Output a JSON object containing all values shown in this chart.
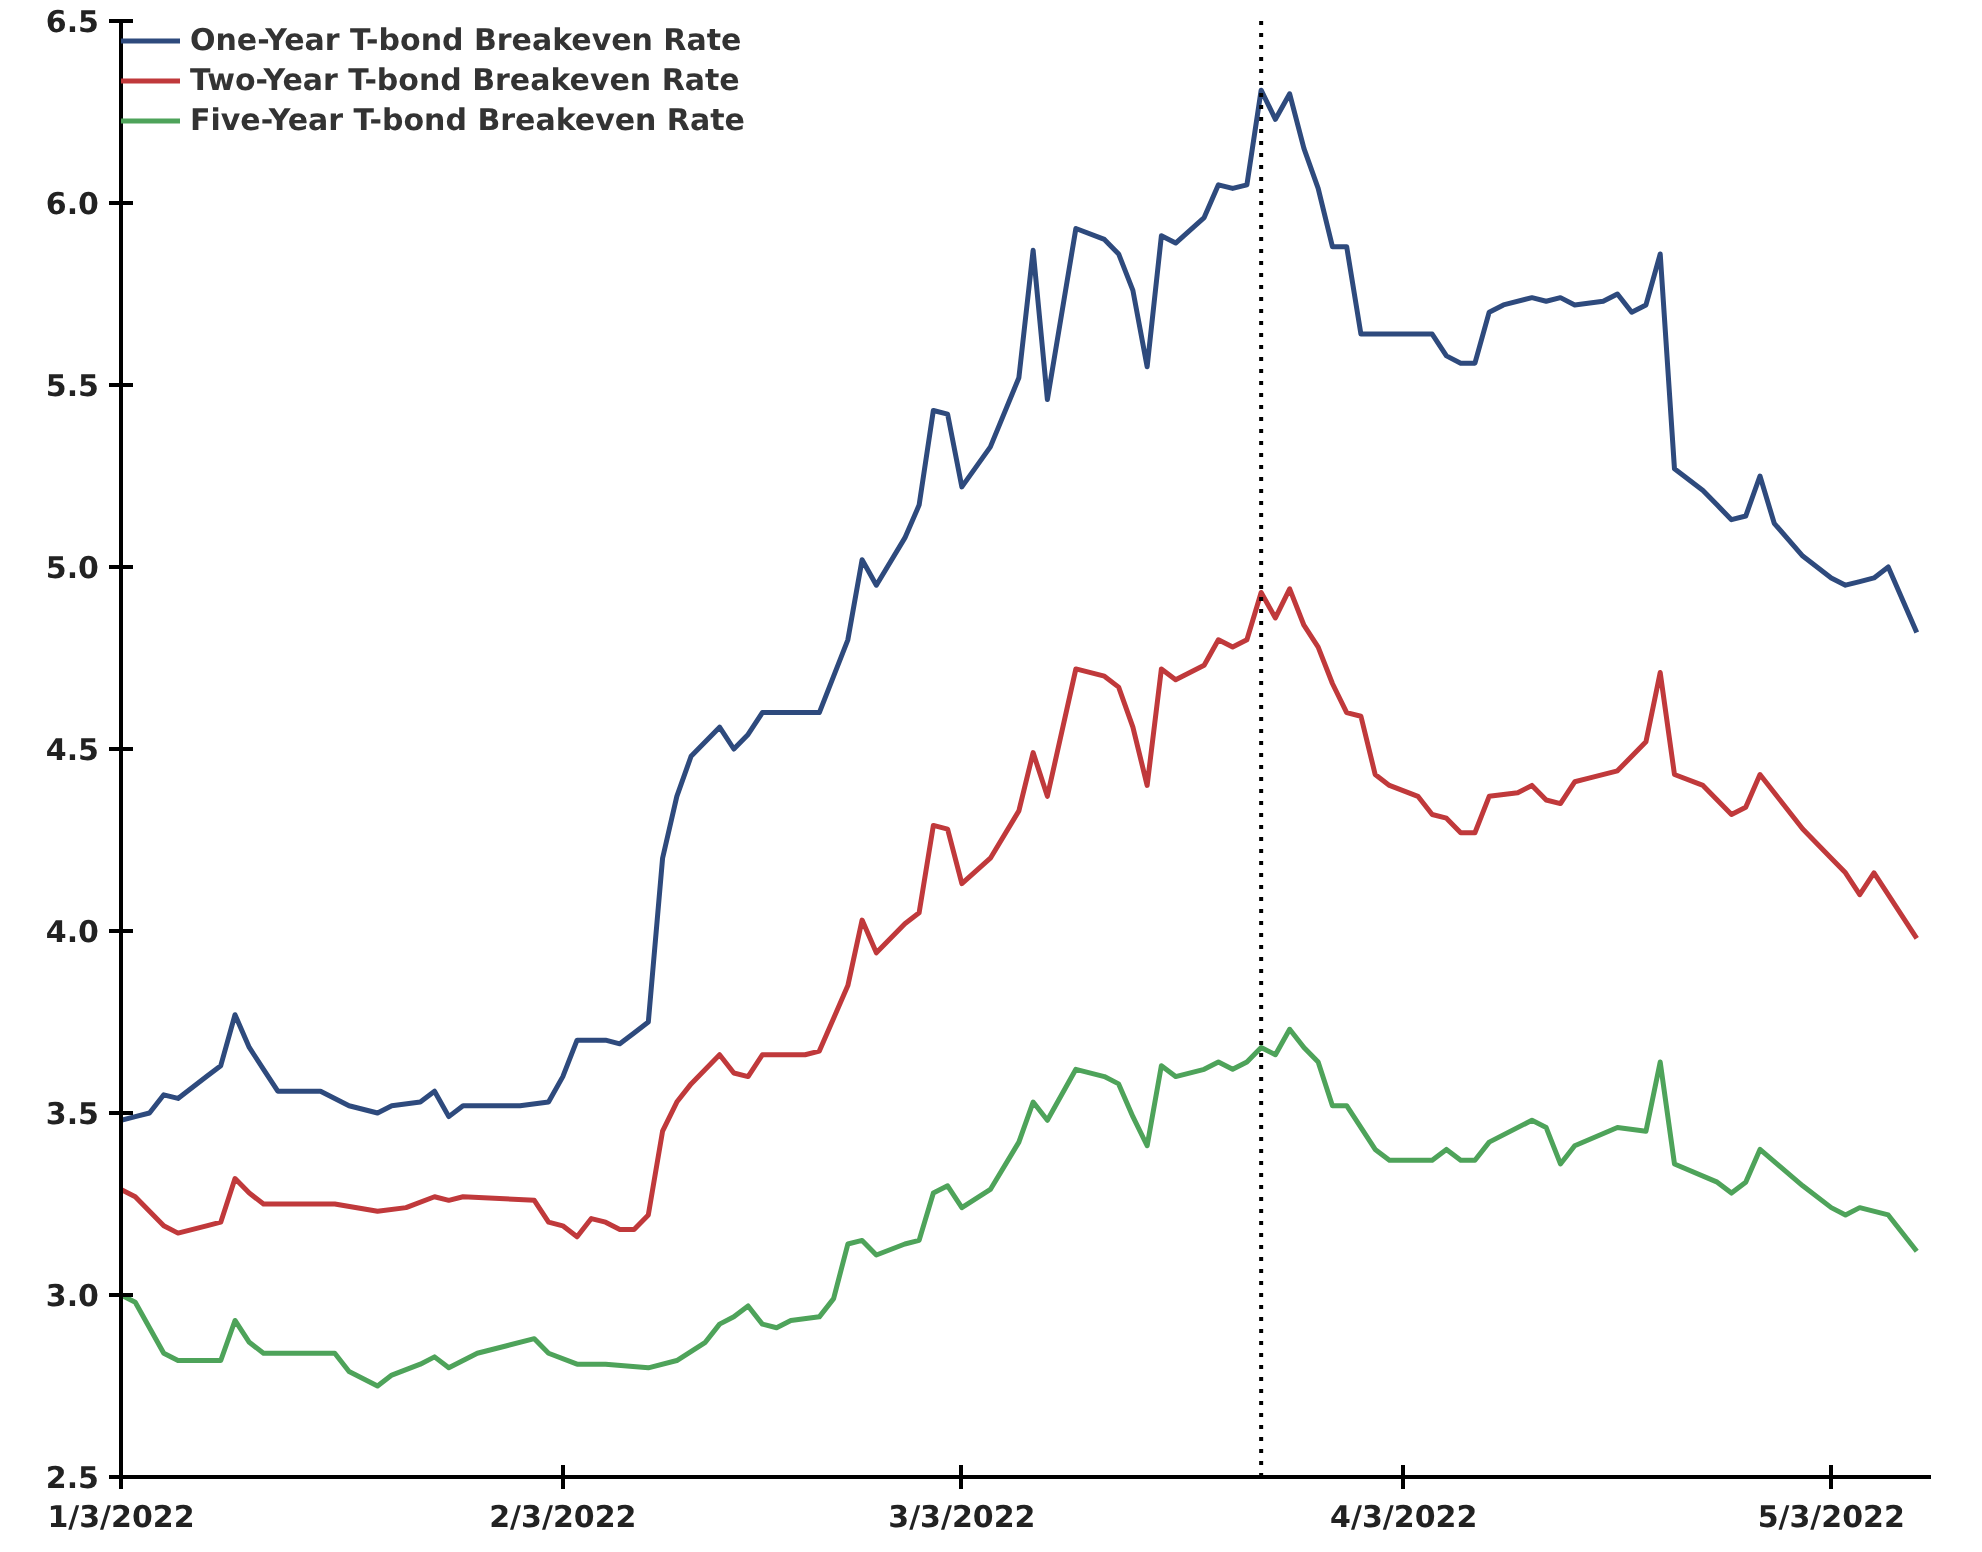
{
  "chart_data": {
    "type": "line",
    "xlim": [
      "2022-01-03",
      "2022-05-10"
    ],
    "xticks": [
      {
        "value": "2022-01-03",
        "label": "1/3/2022"
      },
      {
        "value": "2022-02-03",
        "label": "2/3/2022"
      },
      {
        "value": "2022-03-03",
        "label": "3/3/2022"
      },
      {
        "value": "2022-04-03",
        "label": "4/3/2022"
      },
      {
        "value": "2022-05-03",
        "label": "5/3/2022"
      }
    ],
    "ylim": [
      2.5,
      6.5
    ],
    "yticks": [
      2.5,
      {
        "value": 3,
        "label": "3.0"
      },
      3.5,
      {
        "value": 4,
        "label": "4.0"
      },
      4.5,
      {
        "value": 5,
        "label": "5.0"
      },
      5.5,
      {
        "value": 6,
        "label": "6.0"
      },
      6.5
    ],
    "grid": false,
    "legend": "top left",
    "line_style": "solid",
    "marker": "none",
    "ref_lines": [
      {
        "axis": "x",
        "value": "2022-03-24",
        "color": "#000000",
        "line_style": "dotted"
      }
    ],
    "series": [
      {
        "name": "One-Year T-bond Breakeven Rate",
        "color": "#2e4a7d",
        "x": [
          "2022-01-03",
          "2022-01-04",
          "2022-01-05",
          "2022-01-06",
          "2022-01-07",
          "2022-01-09",
          "2022-01-10",
          "2022-01-11",
          "2022-01-12",
          "2022-01-13",
          "2022-01-14",
          "2022-01-17",
          "2022-01-19",
          "2022-01-21",
          "2022-01-22",
          "2022-01-24",
          "2022-01-25",
          "2022-01-26",
          "2022-01-27",
          "2022-01-31",
          "2022-02-02",
          "2022-02-03",
          "2022-02-04",
          "2022-02-06",
          "2022-02-07",
          "2022-02-08",
          "2022-02-09",
          "2022-02-10",
          "2022-02-11",
          "2022-02-12",
          "2022-02-14",
          "2022-02-15",
          "2022-02-16",
          "2022-02-17",
          "2022-02-21",
          "2022-02-23",
          "2022-02-24",
          "2022-02-25",
          "2022-02-27",
          "2022-02-28",
          "2022-03-01",
          "2022-03-02",
          "2022-03-03",
          "2022-03-05",
          "2022-03-07",
          "2022-03-08",
          "2022-03-09",
          "2022-03-11",
          "2022-03-13",
          "2022-03-14",
          "2022-03-15",
          "2022-03-16",
          "2022-03-17",
          "2022-03-18",
          "2022-03-20",
          "2022-03-21",
          "2022-03-22",
          "2022-03-23",
          "2022-03-24",
          "2022-03-25",
          "2022-03-26",
          "2022-03-27",
          "2022-03-28",
          "2022-03-29",
          "2022-03-30",
          "2022-03-31",
          "2022-04-02",
          "2022-04-05",
          "2022-04-06",
          "2022-04-07",
          "2022-04-08",
          "2022-04-09",
          "2022-04-10",
          "2022-04-12",
          "2022-04-13",
          "2022-04-14",
          "2022-04-15",
          "2022-04-17",
          "2022-04-18",
          "2022-04-19",
          "2022-04-20",
          "2022-04-21",
          "2022-04-22",
          "2022-04-24",
          "2022-04-25",
          "2022-04-26",
          "2022-04-27",
          "2022-04-28",
          "2022-04-29",
          "2022-05-01",
          "2022-05-03",
          "2022-05-04",
          "2022-05-05",
          "2022-05-06",
          "2022-05-07",
          "2022-05-09"
        ],
        "values": [
          3.48,
          3.49,
          3.5,
          3.55,
          3.54,
          3.6,
          3.63,
          3.77,
          3.68,
          3.62,
          3.56,
          3.56,
          3.52,
          3.5,
          3.52,
          3.53,
          3.56,
          3.49,
          3.52,
          3.52,
          3.53,
          3.6,
          3.7,
          3.7,
          3.69,
          3.72,
          3.75,
          4.2,
          4.37,
          4.48,
          4.56,
          4.5,
          4.54,
          4.6,
          4.6,
          4.8,
          5.02,
          4.95,
          5.08,
          5.17,
          5.43,
          5.42,
          5.22,
          5.33,
          5.52,
          5.87,
          5.46,
          5.93,
          5.9,
          5.86,
          5.76,
          5.55,
          5.91,
          5.89,
          5.96,
          6.05,
          6.04,
          6.05,
          6.31,
          6.23,
          6.3,
          6.15,
          6.04,
          5.88,
          5.88,
          5.64,
          5.64,
          5.64,
          5.58,
          5.56,
          5.56,
          5.7,
          5.72,
          5.74,
          5.73,
          5.74,
          5.72,
          5.73,
          5.75,
          5.7,
          5.72,
          5.86,
          5.27,
          5.21,
          5.17,
          5.13,
          5.14,
          5.25,
          5.12,
          5.03,
          4.97,
          4.95,
          4.96,
          4.97,
          5.0,
          4.82
        ]
      },
      {
        "name": "Two-Year T-bond Breakeven Rate",
        "color": "#c0393b",
        "x": [
          "2022-01-03",
          "2022-01-04",
          "2022-01-06",
          "2022-01-07",
          "2022-01-09",
          "2022-01-10",
          "2022-01-11",
          "2022-01-12",
          "2022-01-13",
          "2022-01-18",
          "2022-01-21",
          "2022-01-23",
          "2022-01-25",
          "2022-01-26",
          "2022-01-27",
          "2022-02-01",
          "2022-02-02",
          "2022-02-03",
          "2022-02-04",
          "2022-02-05",
          "2022-02-06",
          "2022-02-07",
          "2022-02-08",
          "2022-02-09",
          "2022-02-10",
          "2022-02-11",
          "2022-02-12",
          "2022-02-14",
          "2022-02-15",
          "2022-02-16",
          "2022-02-17",
          "2022-02-20",
          "2022-02-21",
          "2022-02-23",
          "2022-02-24",
          "2022-02-25",
          "2022-02-27",
          "2022-02-28",
          "2022-03-01",
          "2022-03-02",
          "2022-03-03",
          "2022-03-05",
          "2022-03-07",
          "2022-03-08",
          "2022-03-09",
          "2022-03-11",
          "2022-03-13",
          "2022-03-14",
          "2022-03-15",
          "2022-03-16",
          "2022-03-17",
          "2022-03-18",
          "2022-03-20",
          "2022-03-21",
          "2022-03-22",
          "2022-03-23",
          "2022-03-24",
          "2022-03-25",
          "2022-03-26",
          "2022-03-27",
          "2022-03-28",
          "2022-03-29",
          "2022-03-30",
          "2022-03-31",
          "2022-04-01",
          "2022-04-02",
          "2022-04-04",
          "2022-04-05",
          "2022-04-06",
          "2022-04-07",
          "2022-04-08",
          "2022-04-09",
          "2022-04-11",
          "2022-04-12",
          "2022-04-13",
          "2022-04-14",
          "2022-04-15",
          "2022-04-16",
          "2022-04-18",
          "2022-04-20",
          "2022-04-21",
          "2022-04-22",
          "2022-04-24",
          "2022-04-25",
          "2022-04-26",
          "2022-04-27",
          "2022-04-28",
          "2022-05-01",
          "2022-05-03",
          "2022-05-04",
          "2022-05-05",
          "2022-05-06",
          "2022-05-09"
        ],
        "values": [
          3.29,
          3.27,
          3.19,
          3.17,
          3.19,
          3.2,
          3.32,
          3.28,
          3.25,
          3.25,
          3.23,
          3.24,
          3.27,
          3.26,
          3.27,
          3.26,
          3.2,
          3.19,
          3.16,
          3.21,
          3.2,
          3.18,
          3.18,
          3.22,
          3.45,
          3.53,
          3.58,
          3.66,
          3.61,
          3.6,
          3.66,
          3.66,
          3.67,
          3.85,
          4.03,
          3.94,
          4.02,
          4.05,
          4.29,
          4.28,
          4.13,
          4.2,
          4.33,
          4.49,
          4.37,
          4.72,
          4.7,
          4.67,
          4.56,
          4.4,
          4.72,
          4.69,
          4.73,
          4.8,
          4.78,
          4.8,
          4.93,
          4.86,
          4.94,
          4.84,
          4.78,
          4.68,
          4.6,
          4.59,
          4.43,
          4.4,
          4.37,
          4.32,
          4.31,
          4.27,
          4.27,
          4.37,
          4.38,
          4.4,
          4.36,
          4.35,
          4.41,
          4.42,
          4.44,
          4.52,
          4.71,
          4.43,
          4.4,
          4.36,
          4.32,
          4.34,
          4.43,
          4.28,
          4.2,
          4.16,
          4.1,
          4.16,
          3.98
        ]
      },
      {
        "name": "Five-Year T-bond Breakeven Rate",
        "color": "#4ea35a",
        "x": [
          "2022-01-03",
          "2022-01-04",
          "2022-01-06",
          "2022-01-07",
          "2022-01-10",
          "2022-01-11",
          "2022-01-12",
          "2022-01-13",
          "2022-01-18",
          "2022-01-19",
          "2022-01-21",
          "2022-01-22",
          "2022-01-24",
          "2022-01-25",
          "2022-01-26",
          "2022-01-28",
          "2022-01-30",
          "2022-02-01",
          "2022-02-02",
          "2022-02-04",
          "2022-02-06",
          "2022-02-09",
          "2022-02-11",
          "2022-02-13",
          "2022-02-14",
          "2022-02-15",
          "2022-02-16",
          "2022-02-17",
          "2022-02-18",
          "2022-02-19",
          "2022-02-21",
          "2022-02-22",
          "2022-02-23",
          "2022-02-24",
          "2022-02-25",
          "2022-02-27",
          "2022-02-28",
          "2022-03-01",
          "2022-03-02",
          "2022-03-03",
          "2022-03-05",
          "2022-03-07",
          "2022-03-08",
          "2022-03-09",
          "2022-03-11",
          "2022-03-13",
          "2022-03-14",
          "2022-03-15",
          "2022-03-16",
          "2022-03-17",
          "2022-03-18",
          "2022-03-20",
          "2022-03-21",
          "2022-03-22",
          "2022-03-23",
          "2022-03-24",
          "2022-03-25",
          "2022-03-26",
          "2022-03-27",
          "2022-03-28",
          "2022-03-29",
          "2022-03-30",
          "2022-04-01",
          "2022-04-02",
          "2022-04-04",
          "2022-04-05",
          "2022-04-06",
          "2022-04-07",
          "2022-04-08",
          "2022-04-09",
          "2022-04-12",
          "2022-04-13",
          "2022-04-14",
          "2022-04-15",
          "2022-04-18",
          "2022-04-20",
          "2022-04-21",
          "2022-04-22",
          "2022-04-25",
          "2022-04-26",
          "2022-04-27",
          "2022-04-28",
          "2022-05-01",
          "2022-05-03",
          "2022-05-04",
          "2022-05-05",
          "2022-05-07",
          "2022-05-09"
        ],
        "values": [
          3.0,
          2.98,
          2.84,
          2.82,
          2.82,
          2.93,
          2.87,
          2.84,
          2.84,
          2.79,
          2.75,
          2.78,
          2.81,
          2.83,
          2.8,
          2.84,
          2.86,
          2.88,
          2.84,
          2.81,
          2.81,
          2.8,
          2.82,
          2.87,
          2.92,
          2.94,
          2.97,
          2.92,
          2.91,
          2.93,
          2.94,
          2.99,
          3.14,
          3.15,
          3.11,
          3.14,
          3.15,
          3.28,
          3.3,
          3.24,
          3.29,
          3.42,
          3.53,
          3.48,
          3.62,
          3.6,
          3.58,
          3.49,
          3.41,
          3.63,
          3.6,
          3.62,
          3.64,
          3.62,
          3.64,
          3.68,
          3.66,
          3.73,
          3.68,
          3.64,
          3.52,
          3.52,
          3.4,
          3.37,
          3.37,
          3.37,
          3.4,
          3.37,
          3.37,
          3.42,
          3.48,
          3.46,
          3.36,
          3.41,
          3.46,
          3.45,
          3.64,
          3.36,
          3.31,
          3.28,
          3.31,
          3.4,
          3.3,
          3.24,
          3.22,
          3.24,
          3.22,
          3.12
        ]
      }
    ]
  }
}
